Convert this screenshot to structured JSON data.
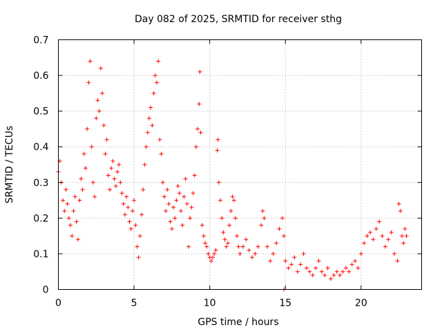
{
  "chart_data": {
    "type": "scatter",
    "title": "Day 082 of 2025, SRMTID for receiver sthg",
    "xlabel": "GPS time / hours",
    "ylabel": "SRMTID / TECUs",
    "xlim": [
      0,
      24
    ],
    "ylim": [
      0,
      0.7
    ],
    "xticks": [
      0,
      5,
      10,
      15,
      20
    ],
    "yticks": [
      0,
      0.1,
      0.2,
      0.3,
      0.4,
      0.5,
      0.6,
      0.7
    ],
    "xtick_labels": [
      "0",
      "5",
      "10",
      "15",
      "20"
    ],
    "ytick_labels": [
      "0",
      "0.1",
      "0.2",
      "0.3",
      "0.4",
      "0.5",
      "0.6",
      "0.7"
    ],
    "grid": true,
    "marker": "plus",
    "color": "#ff0000",
    "series": [
      {
        "name": "SRMTID",
        "points": [
          [
            0.0,
            0.33
          ],
          [
            0.1,
            0.36
          ],
          [
            0.2,
            0.3
          ],
          [
            0.3,
            0.25
          ],
          [
            0.4,
            0.22
          ],
          [
            0.5,
            0.28
          ],
          [
            0.6,
            0.24
          ],
          [
            0.7,
            0.2
          ],
          [
            0.8,
            0.18
          ],
          [
            0.9,
            0.15
          ],
          [
            1.0,
            0.22
          ],
          [
            1.1,
            0.26
          ],
          [
            1.2,
            0.19
          ],
          [
            1.3,
            0.14
          ],
          [
            1.4,
            0.25
          ],
          [
            1.5,
            0.31
          ],
          [
            1.6,
            0.28
          ],
          [
            1.7,
            0.38
          ],
          [
            1.8,
            0.34
          ],
          [
            1.9,
            0.45
          ],
          [
            2.0,
            0.58
          ],
          [
            2.1,
            0.64
          ],
          [
            2.2,
            0.4
          ],
          [
            2.3,
            0.3
          ],
          [
            2.4,
            0.26
          ],
          [
            2.5,
            0.48
          ],
          [
            2.6,
            0.53
          ],
          [
            2.7,
            0.5
          ],
          [
            2.8,
            0.62
          ],
          [
            2.9,
            0.55
          ],
          [
            3.0,
            0.46
          ],
          [
            3.1,
            0.38
          ],
          [
            3.2,
            0.42
          ],
          [
            3.3,
            0.32
          ],
          [
            3.4,
            0.28
          ],
          [
            3.5,
            0.34
          ],
          [
            3.6,
            0.36
          ],
          [
            3.7,
            0.31
          ],
          [
            3.8,
            0.29
          ],
          [
            3.9,
            0.33
          ],
          [
            4.0,
            0.35
          ],
          [
            4.1,
            0.3
          ],
          [
            4.2,
            0.27
          ],
          [
            4.3,
            0.24
          ],
          [
            4.4,
            0.21
          ],
          [
            4.5,
            0.26
          ],
          [
            4.6,
            0.23
          ],
          [
            4.7,
            0.19
          ],
          [
            4.8,
            0.17
          ],
          [
            4.9,
            0.22
          ],
          [
            5.0,
            0.25
          ],
          [
            5.1,
            0.18
          ],
          [
            5.2,
            0.12
          ],
          [
            5.3,
            0.09
          ],
          [
            5.4,
            0.15
          ],
          [
            5.5,
            0.21
          ],
          [
            5.6,
            0.28
          ],
          [
            5.7,
            0.35
          ],
          [
            5.8,
            0.4
          ],
          [
            5.9,
            0.44
          ],
          [
            6.0,
            0.48
          ],
          [
            6.1,
            0.51
          ],
          [
            6.2,
            0.46
          ],
          [
            6.3,
            0.55
          ],
          [
            6.4,
            0.6
          ],
          [
            6.5,
            0.58
          ],
          [
            6.6,
            0.64
          ],
          [
            6.7,
            0.42
          ],
          [
            6.8,
            0.38
          ],
          [
            6.9,
            0.3
          ],
          [
            7.0,
            0.26
          ],
          [
            7.1,
            0.22
          ],
          [
            7.2,
            0.28
          ],
          [
            7.3,
            0.24
          ],
          [
            7.4,
            0.19
          ],
          [
            7.5,
            0.17
          ],
          [
            7.6,
            0.23
          ],
          [
            7.7,
            0.2
          ],
          [
            7.8,
            0.25
          ],
          [
            7.9,
            0.29
          ],
          [
            8.0,
            0.27
          ],
          [
            8.1,
            0.22
          ],
          [
            8.2,
            0.18
          ],
          [
            8.3,
            0.26
          ],
          [
            8.4,
            0.31
          ],
          [
            8.5,
            0.24
          ],
          [
            8.6,
            0.12
          ],
          [
            8.7,
            0.2
          ],
          [
            8.8,
            0.23
          ],
          [
            8.9,
            0.27
          ],
          [
            9.0,
            0.32
          ],
          [
            9.1,
            0.4
          ],
          [
            9.2,
            0.45
          ],
          [
            9.3,
            0.52
          ],
          [
            9.35,
            0.61
          ],
          [
            9.4,
            0.44
          ],
          [
            9.5,
            0.18
          ],
          [
            9.6,
            0.15
          ],
          [
            9.7,
            0.13
          ],
          [
            9.8,
            0.12
          ],
          [
            9.9,
            0.1
          ],
          [
            10.0,
            0.09
          ],
          [
            10.1,
            0.08
          ],
          [
            10.2,
            0.09
          ],
          [
            10.3,
            0.1
          ],
          [
            10.4,
            0.11
          ],
          [
            10.5,
            0.39
          ],
          [
            10.55,
            0.42
          ],
          [
            10.6,
            0.3
          ],
          [
            10.7,
            0.25
          ],
          [
            10.8,
            0.2
          ],
          [
            10.9,
            0.16
          ],
          [
            11.0,
            0.14
          ],
          [
            11.1,
            0.12
          ],
          [
            11.2,
            0.13
          ],
          [
            11.3,
            0.18
          ],
          [
            11.4,
            0.22
          ],
          [
            11.5,
            0.26
          ],
          [
            11.6,
            0.25
          ],
          [
            11.7,
            0.2
          ],
          [
            11.8,
            0.15
          ],
          [
            11.9,
            0.12
          ],
          [
            12.0,
            0.1
          ],
          [
            12.2,
            0.12
          ],
          [
            12.4,
            0.14
          ],
          [
            12.6,
            0.11
          ],
          [
            12.8,
            0.09
          ],
          [
            13.0,
            0.1
          ],
          [
            13.2,
            0.12
          ],
          [
            13.4,
            0.18
          ],
          [
            13.5,
            0.22
          ],
          [
            13.6,
            0.2
          ],
          [
            13.8,
            0.12
          ],
          [
            14.0,
            0.08
          ],
          [
            14.2,
            0.1
          ],
          [
            14.4,
            0.13
          ],
          [
            14.6,
            0.17
          ],
          [
            14.8,
            0.2
          ],
          [
            14.9,
            0.15
          ],
          [
            15.0,
            0.08
          ],
          [
            15.2,
            0.06
          ],
          [
            15.4,
            0.07
          ],
          [
            15.6,
            0.09
          ],
          [
            15.8,
            0.05
          ],
          [
            16.0,
            0.07
          ],
          [
            16.2,
            0.1
          ],
          [
            16.4,
            0.06
          ],
          [
            16.6,
            0.05
          ],
          [
            16.8,
            0.04
          ],
          [
            17.0,
            0.06
          ],
          [
            17.2,
            0.08
          ],
          [
            17.4,
            0.05
          ],
          [
            17.6,
            0.04
          ],
          [
            17.8,
            0.06
          ],
          [
            18.0,
            0.03
          ],
          [
            18.2,
            0.04
          ],
          [
            18.4,
            0.05
          ],
          [
            18.6,
            0.04
          ],
          [
            18.8,
            0.05
          ],
          [
            19.0,
            0.06
          ],
          [
            19.2,
            0.05
          ],
          [
            19.4,
            0.07
          ],
          [
            19.6,
            0.08
          ],
          [
            19.8,
            0.06
          ],
          [
            20.0,
            0.1
          ],
          [
            20.2,
            0.13
          ],
          [
            20.4,
            0.15
          ],
          [
            20.6,
            0.16
          ],
          [
            20.8,
            0.14
          ],
          [
            21.0,
            0.17
          ],
          [
            21.2,
            0.19
          ],
          [
            21.4,
            0.15
          ],
          [
            21.6,
            0.12
          ],
          [
            21.8,
            0.14
          ],
          [
            22.0,
            0.16
          ],
          [
            22.2,
            0.1
          ],
          [
            22.4,
            0.08
          ],
          [
            22.5,
            0.24
          ],
          [
            22.6,
            0.22
          ],
          [
            22.7,
            0.15
          ],
          [
            22.8,
            0.13
          ],
          [
            22.9,
            0.17
          ],
          [
            23.0,
            0.15
          ],
          [
            14.9,
            0.0
          ]
        ]
      }
    ]
  }
}
